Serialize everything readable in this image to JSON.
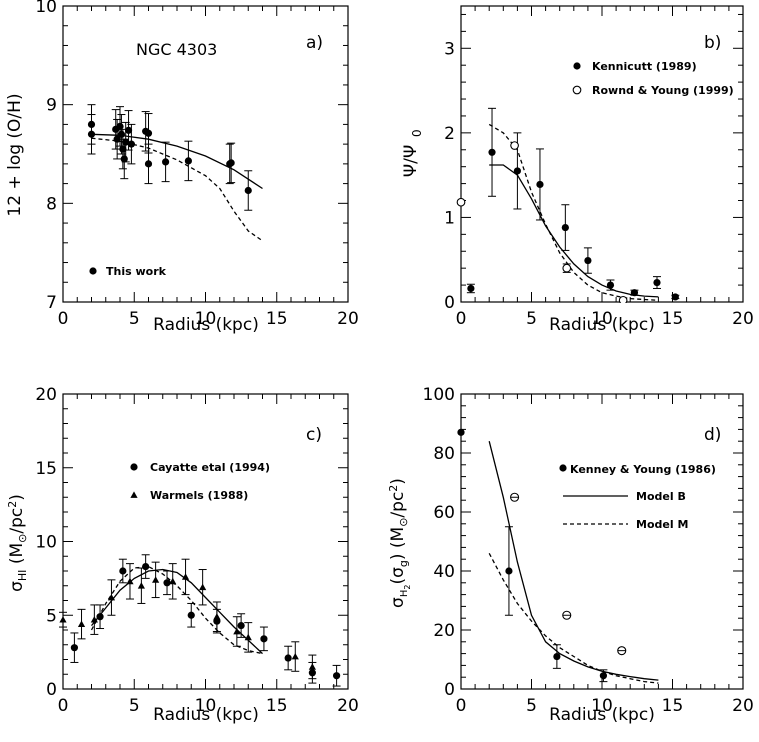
{
  "chart_data": [
    {
      "id": "a",
      "type": "scatter",
      "panel_label": "a)",
      "annotation": "NGC 4303",
      "xlabel": "Radius (kpc)",
      "ylabel": "12 + log (O/H)",
      "xlim": [
        0,
        20
      ],
      "ylim": [
        7,
        10
      ],
      "xticks": [
        0,
        5,
        10,
        15,
        20
      ],
      "yticks": [
        7,
        8,
        9,
        10
      ],
      "legend": [
        {
          "label": "This work",
          "marker": "filled-circle"
        }
      ],
      "points": [
        {
          "series": "This work",
          "x": 2.0,
          "y": 8.8,
          "err": 0.2
        },
        {
          "series": "This work",
          "x": 2.0,
          "y": 8.7,
          "err": 0.2
        },
        {
          "series": "This work",
          "x": 3.7,
          "y": 8.75,
          "err": 0.2
        },
        {
          "series": "This work",
          "x": 3.8,
          "y": 8.65,
          "err": 0.2
        },
        {
          "series": "This work",
          "x": 4.0,
          "y": 8.78,
          "err": 0.2
        },
        {
          "series": "This work",
          "x": 4.1,
          "y": 8.7,
          "err": 0.2
        },
        {
          "series": "This work",
          "x": 4.2,
          "y": 8.55,
          "err": 0.2
        },
        {
          "series": "This work",
          "x": 4.3,
          "y": 8.45,
          "err": 0.2
        },
        {
          "series": "This work",
          "x": 4.4,
          "y": 8.62,
          "err": 0.2
        },
        {
          "series": "This work",
          "x": 4.6,
          "y": 8.74,
          "err": 0.2
        },
        {
          "series": "This work",
          "x": 4.8,
          "y": 8.6,
          "err": 0.2
        },
        {
          "series": "This work",
          "x": 5.8,
          "y": 8.73,
          "err": 0.2
        },
        {
          "series": "This work",
          "x": 6.0,
          "y": 8.71,
          "err": 0.2
        },
        {
          "series": "This work",
          "x": 6.0,
          "y": 8.4,
          "err": 0.2
        },
        {
          "series": "This work",
          "x": 7.2,
          "y": 8.42,
          "err": 0.2
        },
        {
          "series": "This work",
          "x": 8.8,
          "y": 8.43,
          "err": 0.2
        },
        {
          "series": "This work",
          "x": 11.7,
          "y": 8.4,
          "err": 0.2
        },
        {
          "series": "This work",
          "x": 11.8,
          "y": 8.41,
          "err": 0.2
        },
        {
          "series": "This work",
          "x": 13.0,
          "y": 8.13,
          "err": 0.2
        }
      ],
      "lines": [
        {
          "style": "solid",
          "x": [
            2,
            4,
            6,
            8,
            10,
            12,
            14
          ],
          "y": [
            8.7,
            8.69,
            8.65,
            8.58,
            8.48,
            8.34,
            8.15
          ]
        },
        {
          "style": "dashed",
          "x": [
            2,
            4,
            6,
            8,
            10,
            11,
            12,
            13,
            14
          ],
          "y": [
            8.66,
            8.63,
            8.56,
            8.44,
            8.28,
            8.15,
            7.92,
            7.72,
            7.62
          ]
        }
      ]
    },
    {
      "id": "b",
      "type": "scatter",
      "panel_label": "b)",
      "xlabel": "Radius (kpc)",
      "ylabel": "Ψ/Ψ0",
      "xlim": [
        0,
        20
      ],
      "ylim": [
        0,
        3.5
      ],
      "xticks": [
        0,
        5,
        10,
        15,
        20
      ],
      "yticks": [
        0,
        1,
        2,
        3
      ],
      "legend": [
        {
          "label": "Kennicutt (1989)",
          "marker": "filled-circle"
        },
        {
          "label": "Rownd & Young (1999)",
          "marker": "open-circle"
        }
      ],
      "points": [
        {
          "series": "Kennicutt (1989)",
          "x": 0.7,
          "y": 0.16,
          "err": 0.05
        },
        {
          "series": "Kennicutt (1989)",
          "x": 2.2,
          "y": 1.77,
          "err": 0.52
        },
        {
          "series": "Kennicutt (1989)",
          "x": 4.0,
          "y": 1.55,
          "err": 0.45
        },
        {
          "series": "Kennicutt (1989)",
          "x": 5.6,
          "y": 1.39,
          "err": 0.42
        },
        {
          "series": "Kennicutt (1989)",
          "x": 7.4,
          "y": 0.88,
          "err": 0.27
        },
        {
          "series": "Kennicutt (1989)",
          "x": 9.0,
          "y": 0.49,
          "err": 0.15
        },
        {
          "series": "Kennicutt (1989)",
          "x": 10.6,
          "y": 0.2,
          "err": 0.06
        },
        {
          "series": "Kennicutt (1989)",
          "x": 12.3,
          "y": 0.11,
          "err": 0.03
        },
        {
          "series": "Kennicutt (1989)",
          "x": 13.9,
          "y": 0.23,
          "err": 0.07
        },
        {
          "series": "Kennicutt (1989)",
          "x": 15.2,
          "y": 0.06,
          "err": 0.02
        },
        {
          "series": "Rownd & Young (1999)",
          "x": 0.0,
          "y": 1.18,
          "err": 0
        },
        {
          "series": "Rownd & Young (1999)",
          "x": 3.8,
          "y": 1.85,
          "err": 0
        },
        {
          "series": "Rownd & Young (1999)",
          "x": 7.5,
          "y": 0.4,
          "err": 0.05
        },
        {
          "series": "Rownd & Young (1999)",
          "x": 11.5,
          "y": 0.02,
          "err": 0
        }
      ],
      "lines": [
        {
          "style": "solid",
          "x": [
            2,
            3,
            4,
            5,
            6,
            7,
            8,
            9,
            10,
            11,
            12,
            13,
            14
          ],
          "y": [
            1.62,
            1.62,
            1.5,
            1.22,
            0.9,
            0.65,
            0.45,
            0.3,
            0.2,
            0.13,
            0.09,
            0.07,
            0.06
          ]
        },
        {
          "style": "dashed",
          "x": [
            2,
            3,
            4,
            5,
            6,
            7,
            8,
            9,
            10,
            11,
            12,
            13,
            14
          ],
          "y": [
            2.1,
            2.0,
            1.8,
            1.3,
            0.92,
            0.58,
            0.35,
            0.2,
            0.11,
            0.07,
            0.04,
            0.03,
            0.02
          ]
        }
      ]
    },
    {
      "id": "c",
      "type": "scatter",
      "panel_label": "c)",
      "xlabel": "Radius (kpc)",
      "ylabel": "σHI (M⊙/pc2)",
      "xlim": [
        0,
        20
      ],
      "ylim": [
        0,
        20
      ],
      "xticks": [
        0,
        5,
        10,
        15,
        20
      ],
      "yticks": [
        0,
        5,
        10,
        15,
        20
      ],
      "legend": [
        {
          "label": "Cayatte etal (1994)",
          "marker": "filled-circle"
        },
        {
          "label": "Warmels (1988)",
          "marker": "filled-triangle"
        }
      ],
      "points": [
        {
          "series": "Cayatte etal (1994)",
          "x": 0.8,
          "y": 2.8,
          "err": 1.0
        },
        {
          "series": "Cayatte etal (1994)",
          "x": 2.6,
          "y": 4.9,
          "err": 0.8
        },
        {
          "series": "Cayatte etal (1994)",
          "x": 4.2,
          "y": 8.0,
          "err": 0.8
        },
        {
          "series": "Cayatte etal (1994)",
          "x": 5.8,
          "y": 8.3,
          "err": 0.8
        },
        {
          "series": "Cayatte etal (1994)",
          "x": 7.3,
          "y": 7.2,
          "err": 0.8
        },
        {
          "series": "Cayatte etal (1994)",
          "x": 9.0,
          "y": 5.0,
          "err": 0.8
        },
        {
          "series": "Cayatte etal (1994)",
          "x": 10.8,
          "y": 4.6,
          "err": 0.8
        },
        {
          "series": "Cayatte etal (1994)",
          "x": 12.5,
          "y": 4.3,
          "err": 0.8
        },
        {
          "series": "Cayatte etal (1994)",
          "x": 14.1,
          "y": 3.4,
          "err": 0.8
        },
        {
          "series": "Cayatte etal (1994)",
          "x": 15.8,
          "y": 2.1,
          "err": 0.8
        },
        {
          "series": "Cayatte etal (1994)",
          "x": 17.5,
          "y": 1.1,
          "err": 0.7
        },
        {
          "series": "Cayatte etal (1994)",
          "x": 19.2,
          "y": 0.9,
          "err": 0.7
        },
        {
          "series": "Warmels (1988)",
          "x": 0.0,
          "y": 4.7,
          "err": 0.5
        },
        {
          "series": "Warmels (1988)",
          "x": 1.3,
          "y": 4.4,
          "err": 1.0
        },
        {
          "series": "Warmels (1988)",
          "x": 2.2,
          "y": 4.7,
          "err": 1.0
        },
        {
          "series": "Warmels (1988)",
          "x": 3.4,
          "y": 6.2,
          "err": 1.2
        },
        {
          "series": "Warmels (1988)",
          "x": 4.7,
          "y": 7.3,
          "err": 1.2
        },
        {
          "series": "Warmels (1988)",
          "x": 5.5,
          "y": 7.0,
          "err": 1.2
        },
        {
          "series": "Warmels (1988)",
          "x": 6.5,
          "y": 7.4,
          "err": 1.2
        },
        {
          "series": "Warmels (1988)",
          "x": 7.7,
          "y": 7.3,
          "err": 1.2
        },
        {
          "series": "Warmels (1988)",
          "x": 8.6,
          "y": 7.6,
          "err": 1.2
        },
        {
          "series": "Warmels (1988)",
          "x": 9.8,
          "y": 6.9,
          "err": 1.2
        },
        {
          "series": "Warmels (1988)",
          "x": 10.8,
          "y": 4.9,
          "err": 1.0
        },
        {
          "series": "Warmels (1988)",
          "x": 12.2,
          "y": 3.9,
          "err": 1.0
        },
        {
          "series": "Warmels (1988)",
          "x": 13.0,
          "y": 3.5,
          "err": 1.0
        },
        {
          "series": "Warmels (1988)",
          "x": 16.3,
          "y": 2.2,
          "err": 1.0
        },
        {
          "series": "Warmels (1988)",
          "x": 17.5,
          "y": 1.5,
          "err": 0.8
        }
      ],
      "lines": [
        {
          "style": "solid",
          "x": [
            2,
            3,
            4,
            5,
            6,
            7,
            8,
            9,
            10,
            11,
            12,
            13,
            14
          ],
          "y": [
            4.3,
            5.5,
            6.7,
            7.5,
            8.0,
            8.1,
            7.9,
            7.2,
            6.2,
            5.2,
            4.2,
            3.3,
            2.4
          ]
        },
        {
          "style": "dashed",
          "x": [
            2,
            3,
            4,
            5,
            6,
            7,
            8,
            9,
            10,
            11,
            12,
            13,
            14
          ],
          "y": [
            4.0,
            5.8,
            7.3,
            8.2,
            8.3,
            7.8,
            7.0,
            6.0,
            4.8,
            3.8,
            3.0,
            2.6,
            2.4
          ]
        }
      ]
    },
    {
      "id": "d",
      "type": "scatter",
      "panel_label": "d)",
      "xlabel": "Radius (kpc)",
      "ylabel": "σH2(σg) (M⊙/pc2)",
      "xlim": [
        0,
        20
      ],
      "ylim": [
        0,
        100
      ],
      "xticks": [
        0,
        5,
        10,
        15,
        20
      ],
      "yticks": [
        0,
        20,
        40,
        60,
        80,
        100
      ],
      "legend": [
        {
          "label": "Kenney & Young (1986)",
          "marker": "filled-circle"
        },
        {
          "label": "Model B",
          "marker": "solid-line"
        },
        {
          "label": "Model M",
          "marker": "dashed-line"
        }
      ],
      "points": [
        {
          "series": "Kenney & Young (1986)",
          "x": 0.0,
          "y": 87,
          "err": 0
        },
        {
          "series": "Kenney & Young (1986)",
          "x": 3.4,
          "y": 40,
          "err": 15
        },
        {
          "series": "Kenney & Young (1986)",
          "x": 6.8,
          "y": 11,
          "err": 4
        },
        {
          "series": "Kenney & Young (1986)",
          "x": 10.1,
          "y": 4.5,
          "err": 2
        },
        {
          "series": "open-theta",
          "x": 3.8,
          "y": 65,
          "err": 0
        },
        {
          "series": "open-theta",
          "x": 7.5,
          "y": 25,
          "err": 0
        },
        {
          "series": "open-theta",
          "x": 11.4,
          "y": 13,
          "err": 0
        }
      ],
      "lines": [
        {
          "style": "solid",
          "x": [
            2,
            3,
            4,
            5,
            6,
            7,
            8,
            9,
            10,
            11,
            12,
            13,
            14
          ],
          "y": [
            84,
            65,
            43,
            25,
            16,
            12,
            9.5,
            7.5,
            6,
            5,
            4.2,
            3.5,
            3
          ]
        },
        {
          "style": "dashed",
          "x": [
            2,
            3,
            4,
            5,
            6,
            7,
            8,
            9,
            10,
            11,
            12,
            13,
            14
          ],
          "y": [
            46,
            37,
            29,
            23,
            18,
            14,
            11,
            8,
            6,
            4.5,
            3.5,
            2.5,
            2
          ]
        }
      ]
    }
  ]
}
